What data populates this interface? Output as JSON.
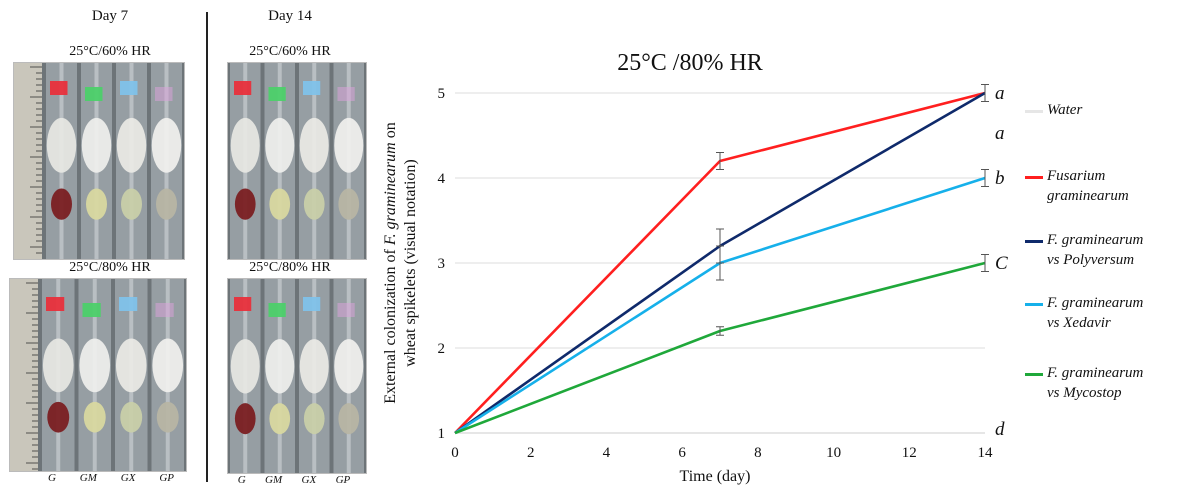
{
  "figure": {
    "panels": [
      {
        "title": "Day 7",
        "top_label": "25°C/60% HR",
        "bottom_label": "25°C/80% HR"
      },
      {
        "title": "Day 14",
        "top_label": "25°C/60% HR",
        "bottom_label": "25°C/80% HR"
      }
    ],
    "tube_labels": [
      "G",
      "GM",
      "GX",
      "GP"
    ],
    "colors": {
      "tag_red": "#e8303c",
      "tag_green": "#4cd06a",
      "tag_blue": "#7fc2ea",
      "tag_pink": "#d8a2d8"
    }
  },
  "chart_data": {
    "type": "line",
    "title": "25°C /80% HR",
    "xlabel": "Time (day)",
    "ylabel_parts": [
      "External colonization of ",
      "F. graminearum",
      " on",
      "wheat spikelets (visual notation)"
    ],
    "xlim": [
      0,
      14
    ],
    "ylim": [
      1,
      5
    ],
    "xticks": [
      0,
      2,
      4,
      6,
      8,
      10,
      12,
      14
    ],
    "yticks": [
      1,
      2,
      3,
      4,
      5
    ],
    "grid": "horizontal",
    "legend_position": "right",
    "series": [
      {
        "name_lines": [
          "Water"
        ],
        "color": "#e6e6e6",
        "x": [
          0,
          14
        ],
        "y": [
          1,
          1
        ],
        "err": [
          0,
          0
        ],
        "letter": "d"
      },
      {
        "name_lines": [
          "Fusarium",
          "graminearum"
        ],
        "color": "#ff1f1f",
        "x": [
          0,
          7,
          14
        ],
        "y": [
          1,
          4.2,
          5
        ],
        "err": [
          0,
          0.1,
          0
        ],
        "letter": "a"
      },
      {
        "name_lines": [
          "F. graminearum",
          "vs Polyversum"
        ],
        "color": "#0f2a6b",
        "x": [
          0,
          7,
          14
        ],
        "y": [
          1,
          3.2,
          5
        ],
        "err": [
          0,
          0.2,
          0.1
        ],
        "letter": "a"
      },
      {
        "name_lines": [
          "F. graminearum",
          "vs Xedavir"
        ],
        "color": "#16b0ea",
        "x": [
          0,
          7,
          14
        ],
        "y": [
          1,
          3.0,
          4.0
        ],
        "err": [
          0,
          0.2,
          0.1
        ],
        "letter": "b"
      },
      {
        "name_lines": [
          "F. graminearum",
          "vs Mycostop"
        ],
        "color": "#1fa83a",
        "x": [
          0,
          7,
          14
        ],
        "y": [
          1,
          2.2,
          3.0
        ],
        "err": [
          0,
          0.05,
          0.1
        ],
        "letter": "C"
      }
    ]
  }
}
